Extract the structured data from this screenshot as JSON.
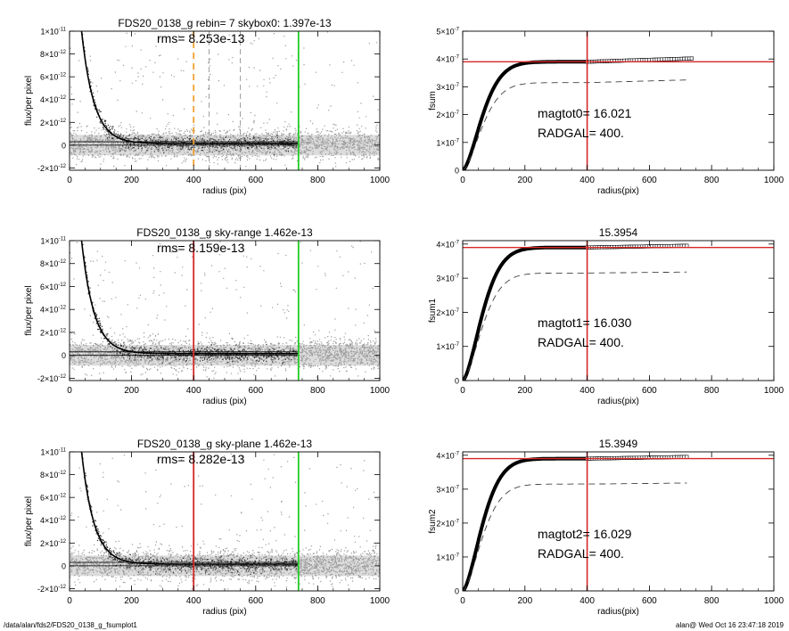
{
  "footer": {
    "path": "/data/alan/fds2/FDS20_0138_g_fsumplot1",
    "user_time": "alan@  Wed Oct 16 23:47:18 2019"
  },
  "colors": {
    "scatter": "#9a9a9a",
    "profile": "#000000",
    "red": "#d62728",
    "green": "#22cc22",
    "orange": "#f0a030",
    "dashed": "#404040"
  },
  "chart_data": [
    {
      "type": "scatter",
      "panel": "row1-left",
      "title": "FDS20_0138_g rebin= 7    skybox0:  1.397e-13",
      "annotation": "rms= 8.253e-13",
      "xlabel": "radius (pix)",
      "ylabel": "flux/per pixel",
      "xlim": [
        0,
        1000
      ],
      "ylim": [
        -2.2e-12,
        1e-11
      ],
      "xticks": [
        0,
        200,
        400,
        600,
        800,
        1000
      ],
      "xtick_labels": [
        "0",
        "200",
        "400",
        "600",
        "800",
        "1000"
      ],
      "ytick_labels": [
        {
          "value": 1e-11,
          "m": "1×10",
          "e": "-11"
        },
        {
          "value": 8e-12,
          "m": "8×10",
          "e": "-12"
        },
        {
          "value": 6e-12,
          "m": "6×10",
          "e": "-12"
        },
        {
          "value": 4e-12,
          "m": "4×10",
          "e": "-12"
        },
        {
          "value": 2e-12,
          "m": "2×10",
          "e": "-12"
        },
        {
          "value": 0,
          "m": "0",
          "e": ""
        },
        {
          "value": -2e-12,
          "m": "-2×10",
          "e": "-12"
        }
      ],
      "profile": {
        "amplitude": 2.6e-11,
        "scale": 40
      },
      "sky_level": 1.4e-13,
      "vlines": [
        {
          "x": 400,
          "color": "orange",
          "style": "dashed"
        },
        {
          "x": 738,
          "color": "green",
          "style": "solid"
        }
      ],
      "gray_vlines": [
        450,
        550
      ],
      "grid": false
    },
    {
      "type": "line",
      "panel": "row1-right",
      "title": "",
      "xlabel": "radius(pix)",
      "ylabel": "fsum",
      "xlim": [
        0,
        1000
      ],
      "ylim": [
        0,
        5e-07
      ],
      "xticks": [
        0,
        200,
        400,
        600,
        800,
        1000
      ],
      "xtick_labels": [
        "0",
        "200",
        "400",
        "600",
        "800",
        "1000"
      ],
      "ytick_labels": [
        {
          "value": 5e-07,
          "m": "5×10",
          "e": "-7"
        },
        {
          "value": 4e-07,
          "m": "4×10",
          "e": "-7"
        },
        {
          "value": 3e-07,
          "m": "3×10",
          "e": "-7"
        },
        {
          "value": 2e-07,
          "m": "2×10",
          "e": "-7"
        },
        {
          "value": 1e-07,
          "m": "1×10",
          "e": "-7"
        },
        {
          "value": 0,
          "m": "0",
          "e": ""
        }
      ],
      "annotations": [
        "magtot0=  16.021",
        "RADGAL=    400."
      ],
      "curve": {
        "asymptote": 3.9e-07,
        "scale": 80,
        "x_max": 738,
        "end_value": 4.02e-07
      },
      "dashed_curve": {
        "asymptote": 3.15e-07,
        "scale": 80,
        "x_max": 730,
        "end_value": 3.25e-07
      },
      "hline": 3.9e-07,
      "vline": 400,
      "grid": false
    },
    {
      "type": "scatter",
      "panel": "row2-left",
      "title": "FDS20_0138_g sky-range  1.462e-13",
      "annotation": "rms= 8.159e-13",
      "xlabel": "radius (pix)",
      "ylabel": "flux/per pixel",
      "xlim": [
        0,
        1000
      ],
      "ylim": [
        -2.2e-12,
        1e-11
      ],
      "xticks": [
        0,
        200,
        400,
        600,
        800,
        1000
      ],
      "xtick_labels": [
        "0",
        "200",
        "400",
        "600",
        "800",
        "1000"
      ],
      "ytick_labels": [
        {
          "value": 1e-11,
          "m": "1×10",
          "e": "-11"
        },
        {
          "value": 8e-12,
          "m": "8×10",
          "e": "-12"
        },
        {
          "value": 6e-12,
          "m": "6×10",
          "e": "-12"
        },
        {
          "value": 4e-12,
          "m": "4×10",
          "e": "-12"
        },
        {
          "value": 2e-12,
          "m": "2×10",
          "e": "-12"
        },
        {
          "value": 0,
          "m": "0",
          "e": ""
        },
        {
          "value": -2e-12,
          "m": "-2×10",
          "e": "-12"
        }
      ],
      "profile": {
        "amplitude": 2.6e-11,
        "scale": 40
      },
      "sky_level": 1.46e-13,
      "vlines": [
        {
          "x": 400,
          "color": "red",
          "style": "solid"
        },
        {
          "x": 738,
          "color": "green",
          "style": "solid"
        }
      ],
      "gray_vlines": [],
      "grid": false
    },
    {
      "type": "line",
      "panel": "row2-right",
      "title": "15.3954",
      "xlabel": "radius(pix)",
      "ylabel": "fsum1",
      "xlim": [
        0,
        1000
      ],
      "ylim": [
        0,
        4.1e-07
      ],
      "xticks": [
        0,
        200,
        400,
        600,
        800,
        1000
      ],
      "xtick_labels": [
        "0",
        "200",
        "400",
        "600",
        "800",
        "1000"
      ],
      "ytick_labels": [
        {
          "value": 4e-07,
          "m": "4×10",
          "e": "-7"
        },
        {
          "value": 3e-07,
          "m": "3×10",
          "e": "-7"
        },
        {
          "value": 2e-07,
          "m": "2×10",
          "e": "-7"
        },
        {
          "value": 1e-07,
          "m": "1×10",
          "e": "-7"
        },
        {
          "value": 0,
          "m": "0",
          "e": ""
        }
      ],
      "annotations": [
        "magtot1=  16.030",
        "RADGAL=    400."
      ],
      "curve": {
        "asymptote": 3.9e-07,
        "scale": 80,
        "x_max": 720,
        "end_value": 3.95e-07
      },
      "dashed_curve": {
        "asymptote": 3.15e-07,
        "scale": 80,
        "x_max": 720,
        "end_value": 3.18e-07
      },
      "hline": 3.9e-07,
      "vline": 400,
      "grid": false
    },
    {
      "type": "scatter",
      "panel": "row3-left",
      "title": "FDS20_0138_g sky-plane  1.462e-13",
      "annotation": "rms= 8.282e-13",
      "xlabel": "radius (pix)",
      "ylabel": "flux/per pixel",
      "xlim": [
        0,
        1000
      ],
      "ylim": [
        -2.2e-12,
        1e-11
      ],
      "xticks": [
        0,
        200,
        400,
        600,
        800,
        1000
      ],
      "xtick_labels": [
        "0",
        "200",
        "400",
        "600",
        "800",
        "1000"
      ],
      "ytick_labels": [
        {
          "value": 1e-11,
          "m": "1×10",
          "e": "-11"
        },
        {
          "value": 8e-12,
          "m": "8×10",
          "e": "-12"
        },
        {
          "value": 6e-12,
          "m": "6×10",
          "e": "-12"
        },
        {
          "value": 4e-12,
          "m": "4×10",
          "e": "-12"
        },
        {
          "value": 2e-12,
          "m": "2×10",
          "e": "-12"
        },
        {
          "value": 0,
          "m": "0",
          "e": ""
        },
        {
          "value": -2e-12,
          "m": "-2×10",
          "e": "-12"
        }
      ],
      "profile": {
        "amplitude": 2.6e-11,
        "scale": 40
      },
      "sky_level": 1.46e-13,
      "vlines": [
        {
          "x": 400,
          "color": "red",
          "style": "solid"
        },
        {
          "x": 738,
          "color": "green",
          "style": "solid"
        }
      ],
      "gray_vlines": [],
      "grid": false
    },
    {
      "type": "line",
      "panel": "row3-right",
      "title": "15.3949",
      "xlabel": "radius(pix)",
      "ylabel": "fsum2",
      "xlim": [
        0,
        1000
      ],
      "ylim": [
        0,
        4.1e-07
      ],
      "xticks": [
        0,
        200,
        400,
        600,
        800,
        1000
      ],
      "xtick_labels": [
        "0",
        "200",
        "400",
        "600",
        "800",
        "1000"
      ],
      "ytick_labels": [
        {
          "value": 4e-07,
          "m": "4×10",
          "e": "-7"
        },
        {
          "value": 3e-07,
          "m": "3×10",
          "e": "-7"
        },
        {
          "value": 2e-07,
          "m": "2×10",
          "e": "-7"
        },
        {
          "value": 1e-07,
          "m": "1×10",
          "e": "-7"
        },
        {
          "value": 0,
          "m": "0",
          "e": ""
        }
      ],
      "annotations": [
        "magtot2=  16.029",
        "RADGAL=    400."
      ],
      "curve": {
        "asymptote": 3.9e-07,
        "scale": 80,
        "x_max": 720,
        "end_value": 3.95e-07
      },
      "dashed_curve": {
        "asymptote": 3.15e-07,
        "scale": 80,
        "x_max": 720,
        "end_value": 3.18e-07
      },
      "hline": 3.9e-07,
      "vline": 400,
      "grid": false
    }
  ]
}
